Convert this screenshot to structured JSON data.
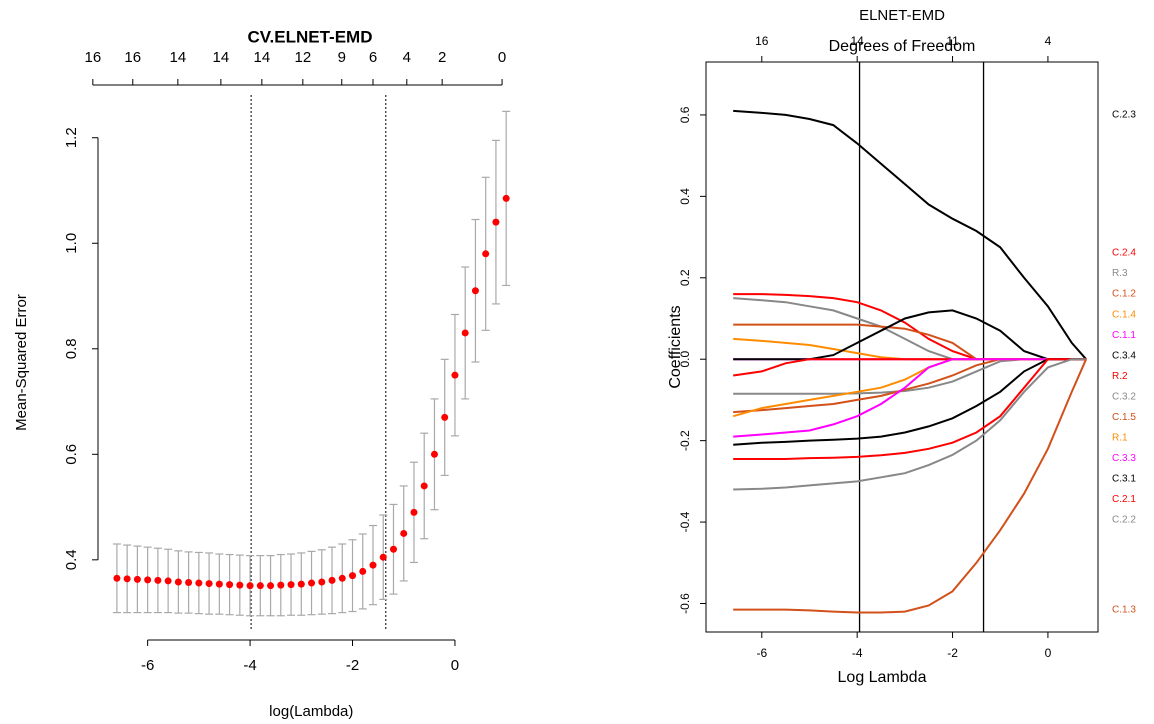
{
  "chart_data": [
    {
      "type": "errorbar",
      "title": "CV.ELNET-EMD",
      "x_label": "log(Lambda)",
      "y_label": "Mean-Squared Error",
      "x": [
        -6.6,
        -6.4,
        -6.2,
        -6.0,
        -5.8,
        -5.6,
        -5.4,
        -5.2,
        -5.0,
        -4.8,
        -4.6,
        -4.4,
        -4.2,
        -4.0,
        -3.8,
        -3.6,
        -3.4,
        -3.2,
        -3.0,
        -2.8,
        -2.6,
        -2.4,
        -2.2,
        -2.0,
        -1.8,
        -1.6,
        -1.4,
        -1.2,
        -1.0,
        -0.8,
        -0.6,
        -0.4,
        -0.2,
        0.0,
        0.2,
        0.4,
        0.6,
        0.8,
        1.0
      ],
      "values": [
        0.365,
        0.364,
        0.363,
        0.362,
        0.361,
        0.36,
        0.358,
        0.357,
        0.356,
        0.355,
        0.354,
        0.353,
        0.352,
        0.351,
        0.351,
        0.351,
        0.352,
        0.353,
        0.354,
        0.356,
        0.358,
        0.361,
        0.365,
        0.37,
        0.378,
        0.39,
        0.405,
        0.42,
        0.45,
        0.49,
        0.54,
        0.6,
        0.67,
        0.75,
        0.83,
        0.91,
        0.98,
        1.04,
        1.085
      ],
      "errors": [
        0.065,
        0.064,
        0.063,
        0.062,
        0.061,
        0.06,
        0.059,
        0.058,
        0.058,
        0.058,
        0.057,
        0.057,
        0.057,
        0.057,
        0.057,
        0.057,
        0.058,
        0.058,
        0.059,
        0.06,
        0.061,
        0.063,
        0.065,
        0.068,
        0.071,
        0.075,
        0.08,
        0.085,
        0.09,
        0.095,
        0.1,
        0.105,
        0.11,
        0.115,
        0.125,
        0.135,
        0.145,
        0.155,
        0.165
      ],
      "color": "#ff0000",
      "error_color": "#a9a9a9",
      "xlim": [
        -6.93,
        1.27
      ],
      "ylim": [
        0.267,
        1.281
      ],
      "xticks": [
        -6,
        -4,
        -2,
        0
      ],
      "yticks": [
        0.4,
        0.6,
        0.8,
        {
          "value": 1,
          "label": "1.0"
        },
        1.2
      ],
      "top_ticks": [
        {
          "value": -7.07,
          "label": "16"
        },
        {
          "value": -6.29,
          "label": "16"
        },
        {
          "value": -5.41,
          "label": "14"
        },
        {
          "value": -4.57,
          "label": "14"
        },
        {
          "value": -3.77,
          "label": "14"
        },
        {
          "value": -2.97,
          "label": "12"
        },
        {
          "value": -2.21,
          "label": "9"
        },
        {
          "value": -1.6,
          "label": "6"
        },
        {
          "value": -0.94,
          "label": "4"
        },
        {
          "value": -0.25,
          "label": "2"
        },
        {
          "value": 0.92,
          "label": "0"
        }
      ],
      "vlines": [
        -3.98,
        -1.35
      ],
      "vline_style": "dashed"
    },
    {
      "type": "line",
      "title": "ELNET-EMD",
      "top_label": "Degrees of Freedom",
      "x_label": "Log Lambda",
      "y_label": "Coefficients",
      "x": [
        -6.6,
        -6.0,
        -5.5,
        -5.0,
        -4.5,
        -4.0,
        -3.5,
        -3.0,
        -2.5,
        -2.0,
        -1.5,
        -1.0,
        -0.5,
        0.0,
        0.5,
        0.8
      ],
      "series": [
        {
          "name": "C.2.3",
          "color": "#000000",
          "values": [
            0.61,
            0.605,
            0.6,
            0.59,
            0.575,
            0.53,
            0.48,
            0.43,
            0.38,
            0.345,
            0.315,
            0.275,
            0.2,
            0.13,
            0.04,
            0
          ]
        },
        {
          "name": "C.2.4",
          "color": "#ff0000",
          "values": [
            0.16,
            0.16,
            0.158,
            0.155,
            0.15,
            0.14,
            0.12,
            0.09,
            0.05,
            0.02,
            0,
            0,
            0,
            0,
            0,
            0
          ]
        },
        {
          "name": "R.3",
          "color": "#888888",
          "values": [
            0.15,
            0.145,
            0.14,
            0.13,
            0.12,
            0.1,
            0.08,
            0.05,
            0.02,
            0,
            0,
            0,
            0,
            0,
            0,
            0
          ]
        },
        {
          "name": "C.1.2",
          "color": "#d2501a",
          "values": [
            0.085,
            0.085,
            0.085,
            0.085,
            0.085,
            0.085,
            0.08,
            0.075,
            0.06,
            0.04,
            0,
            0,
            0,
            0,
            0,
            0
          ]
        },
        {
          "name": "C.1.4",
          "color": "#ff8c00",
          "values": [
            0.05,
            0.045,
            0.04,
            0.035,
            0.025,
            0.015,
            0.005,
            0,
            0,
            0,
            0,
            0,
            0,
            0,
            0,
            0
          ]
        },
        {
          "name": "C.1.1",
          "color": "#ff00ff",
          "values": [
            0,
            0,
            0,
            0,
            0,
            0,
            0,
            0,
            0,
            0,
            0,
            0,
            0,
            0,
            0,
            0
          ]
        },
        {
          "name": "C.3.4",
          "color": "#000000",
          "values": [
            0,
            0,
            0,
            0,
            0.01,
            0.04,
            0.07,
            0.1,
            0.115,
            0.12,
            0.1,
            0.07,
            0.02,
            0,
            0,
            0
          ]
        },
        {
          "name": "R.2",
          "color": "#ff0000",
          "values": [
            -0.04,
            -0.03,
            -0.01,
            0,
            0,
            0,
            0,
            0,
            0,
            0,
            0,
            0,
            0,
            0,
            0,
            0
          ]
        },
        {
          "name": "C.3.2",
          "color": "#888888",
          "values": [
            -0.085,
            -0.085,
            -0.085,
            -0.085,
            -0.085,
            -0.084,
            -0.082,
            -0.078,
            -0.07,
            -0.055,
            -0.03,
            -0.005,
            0,
            0,
            0,
            0
          ]
        },
        {
          "name": "C.1.5",
          "color": "#d2501a",
          "values": [
            -0.13,
            -0.125,
            -0.12,
            -0.115,
            -0.11,
            -0.1,
            -0.09,
            -0.075,
            -0.06,
            -0.04,
            -0.015,
            0,
            0,
            0,
            0,
            0
          ]
        },
        {
          "name": "R.1",
          "color": "#ff8c00",
          "values": [
            -0.14,
            -0.12,
            -0.11,
            -0.1,
            -0.09,
            -0.08,
            -0.07,
            -0.05,
            -0.02,
            0,
            0,
            0,
            0,
            0,
            0,
            0
          ]
        },
        {
          "name": "C.3.3",
          "color": "#ff00ff",
          "values": [
            -0.19,
            -0.185,
            -0.18,
            -0.175,
            -0.16,
            -0.14,
            -0.11,
            -0.07,
            -0.02,
            0,
            0,
            0,
            0,
            0,
            0,
            0
          ]
        },
        {
          "name": "C.3.1",
          "color": "#000000",
          "values": [
            -0.21,
            -0.205,
            -0.203,
            -0.2,
            -0.198,
            -0.195,
            -0.19,
            -0.18,
            -0.165,
            -0.145,
            -0.115,
            -0.08,
            -0.03,
            0,
            0,
            0
          ]
        },
        {
          "name": "C.2.1",
          "color": "#ff0000",
          "values": [
            -0.245,
            -0.245,
            -0.245,
            -0.243,
            -0.242,
            -0.24,
            -0.236,
            -0.23,
            -0.22,
            -0.205,
            -0.18,
            -0.14,
            -0.07,
            0,
            0,
            0
          ]
        },
        {
          "name": "C.2.2",
          "color": "#888888",
          "values": [
            -0.32,
            -0.318,
            -0.315,
            -0.31,
            -0.305,
            -0.3,
            -0.29,
            -0.28,
            -0.26,
            -0.235,
            -0.2,
            -0.15,
            -0.08,
            -0.02,
            0,
            0
          ]
        },
        {
          "name": "C.1.3",
          "color": "#d2501a",
          "values": [
            -0.615,
            -0.615,
            -0.615,
            -0.617,
            -0.62,
            -0.622,
            -0.622,
            -0.62,
            -0.605,
            -0.57,
            -0.5,
            -0.42,
            -0.33,
            -0.22,
            -0.08,
            0
          ]
        }
      ],
      "xlim": [
        -7.17,
        1.05
      ],
      "ylim": [
        -0.67,
        0.73
      ],
      "xticks": [
        -6,
        -4,
        -2,
        0
      ],
      "yticks": [
        -0.6,
        -0.4,
        -0.2,
        {
          "value": 0,
          "label": "0.0"
        },
        0.2,
        0.4,
        0.6
      ],
      "top_ticks": [
        {
          "value": -6,
          "label": "16"
        },
        {
          "value": -4,
          "label": "14"
        },
        {
          "value": -2,
          "label": "11"
        },
        {
          "value": 0,
          "label": "4"
        }
      ],
      "vlines": [
        -3.95,
        -1.35
      ],
      "vline_style": "solid"
    }
  ]
}
